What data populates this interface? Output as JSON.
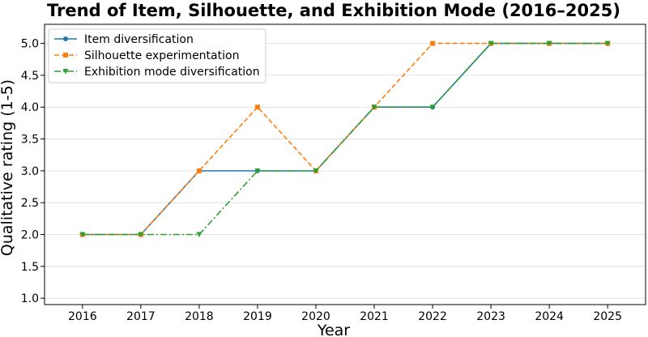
{
  "chart_data": {
    "type": "line",
    "title": "Trend of Item, Silhouette, and Exhibition Mode (2016–2025)",
    "xlabel": "Year",
    "ylabel": "Qualitative rating (1-5)",
    "x": [
      2016,
      2017,
      2018,
      2019,
      2020,
      2021,
      2022,
      2023,
      2024,
      2025
    ],
    "x_tick_labels": [
      "2016",
      "2017",
      "2018",
      "2019",
      "2020",
      "2021",
      "2022",
      "2023",
      "2024",
      "2025"
    ],
    "xlim": [
      2015.35,
      2025.65
    ],
    "ylim": [
      0.9,
      5.3
    ],
    "y_ticks": [
      1.0,
      1.5,
      2.0,
      2.5,
      3.0,
      3.5,
      4.0,
      4.5,
      5.0
    ],
    "y_tick_labels": [
      "1.0",
      "1.5",
      "2.0",
      "2.5",
      "3.0",
      "3.5",
      "4.0",
      "4.5",
      "5.0"
    ],
    "grid": "horizontal",
    "legend_position": "top-left",
    "series": [
      {
        "name": "Item diversification",
        "values": [
          2,
          2,
          3,
          3,
          3,
          4,
          4,
          5,
          5,
          5
        ],
        "color": "#1f77b4",
        "line_style": "solid",
        "marker": "circle"
      },
      {
        "name": "Silhouette experimentation",
        "values": [
          2,
          2,
          3,
          4,
          3,
          4,
          5,
          5,
          5,
          5
        ],
        "color": "#ff7f0e",
        "line_style": "dashed",
        "marker": "square"
      },
      {
        "name": "Exhibition mode diversification",
        "values": [
          2,
          2,
          2,
          3,
          3,
          4,
          4,
          5,
          5,
          5
        ],
        "color": "#2ca02c",
        "line_style": "dashdot",
        "marker": "triangle-down"
      }
    ]
  }
}
